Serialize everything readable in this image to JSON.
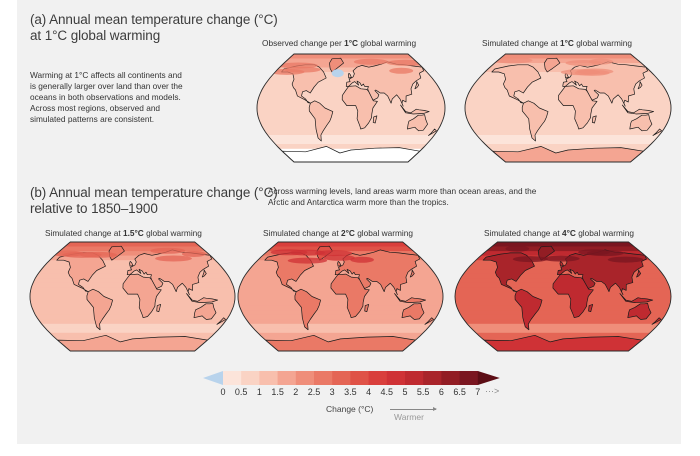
{
  "section_a": {
    "title_line1": "(a) Annual mean temperature change (°C)",
    "title_line2": "at 1°C global warming",
    "description": [
      "Warming at 1°C affects all continents and",
      "is generally larger over land than over the",
      "oceans in both observations and models.",
      "Across most regions, observed and",
      "simulated patterns are consistent."
    ],
    "maps": [
      {
        "label_pre": "Observed change per ",
        "label_bold": "1°C",
        "label_post": " global warming",
        "warming_level_c": 1,
        "kind": "observed"
      },
      {
        "label_pre": "Simulated change at ",
        "label_bold": "1°C",
        "label_post": " global warming",
        "warming_level_c": 1,
        "kind": "simulated"
      }
    ]
  },
  "section_b": {
    "title_line1": "(b) Annual mean temperature change (°C)",
    "title_line2": "relative to 1850–1900",
    "description": [
      "Across warming levels, land areas warm more than ocean areas, and the",
      "Arctic and Antarctica warm more than the tropics."
    ],
    "maps": [
      {
        "label_pre": "Simulated change at ",
        "label_bold": "1.5°C",
        "label_post": " global warming",
        "warming_level_c": 1.5,
        "kind": "simulated"
      },
      {
        "label_pre": "Simulated change at ",
        "label_bold": "2°C",
        "label_post": " global warming",
        "warming_level_c": 2,
        "kind": "simulated"
      },
      {
        "label_pre": "Simulated change at ",
        "label_bold": "4°C",
        "label_post": " global warming",
        "warming_level_c": 4,
        "kind": "simulated"
      }
    ]
  },
  "chart_data": {
    "type": "heatmap",
    "title": "Annual mean temperature change (°C)",
    "colorbar": {
      "label": "Change (°C)",
      "direction_label": "Warmer",
      "more_indicator": "···>",
      "ticks": [
        "0",
        "0.5",
        "1",
        "1.5",
        "2",
        "2.5",
        "3",
        "3.5",
        "4",
        "4.5",
        "5",
        "5.5",
        "6",
        "6.5",
        "7"
      ],
      "range": [
        0,
        7
      ],
      "step": 0.5,
      "below_min_color": "#b8d3ec",
      "segment_colors": [
        "#fce4da",
        "#fad3c4",
        "#f8bfad",
        "#f4a592",
        "#ef8e7a",
        "#ea7966",
        "#e46555",
        "#df5247",
        "#d93f3c",
        "#cf3236",
        "#bf2a30",
        "#a9242a",
        "#921d24",
        "#7a1620"
      ],
      "above_max_color": "#5c0d15"
    },
    "panels": [
      {
        "name": "Observed change per 1°C global warming",
        "global_warming_c": 1,
        "typical_land_change": "1–2",
        "typical_ocean_change": "0.5–1",
        "arctic_change": "2–3"
      },
      {
        "name": "Simulated change at 1°C global warming",
        "global_warming_c": 1,
        "typical_land_change": "1–1.5",
        "typical_ocean_change": "0.5–1",
        "arctic_change": "2–2.5"
      },
      {
        "name": "Simulated change at 1.5°C global warming",
        "global_warming_c": 1.5,
        "typical_land_change": "1.5–2",
        "typical_ocean_change": "1–1.5",
        "arctic_change": "3–4"
      },
      {
        "name": "Simulated change at 2°C global warming",
        "global_warming_c": 2,
        "typical_land_change": "2–3",
        "typical_ocean_change": "1.5–2",
        "arctic_change": "4–5"
      },
      {
        "name": "Simulated change at 4°C global warming",
        "global_warming_c": 4,
        "typical_land_change": "4–6",
        "typical_ocean_change": "3–4",
        "arctic_change": "7+"
      }
    ]
  }
}
